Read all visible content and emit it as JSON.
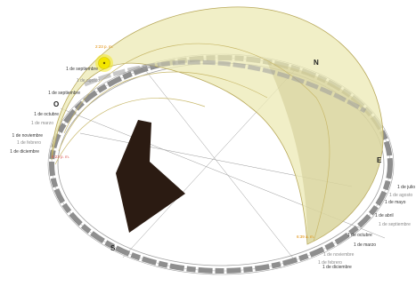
{
  "cardinals": {
    "north": "N",
    "south": "S",
    "east": "E",
    "west": "O"
  },
  "colors": {
    "dome_fill": "#ece9b4",
    "dome_stroke": "#b8a85a",
    "sun": "#f3e600",
    "shadow": "#2b1b12",
    "ring_dark": "#8e8e8e",
    "ring_light": "#d6d6d6",
    "time_orange": "#e08a00",
    "time_red": "#d9534f"
  },
  "time_labels": {
    "sun_time": "2:23 p. m.",
    "west_time": "6:23 p. m.",
    "east_time": "6:39 a. m."
  },
  "left_labels": {
    "l1": "1 de septiembre",
    "l2": "1 de agosto",
    "l3": "1 de septiembre",
    "l4": "1 de octubre",
    "l5": "1 de marzo",
    "l6": "1 de noviembre",
    "l7": "1 de febrero",
    "l8": "1 de diciembre"
  },
  "right_labels": {
    "r1": "1 de julio",
    "r2": "1 de agosto",
    "r3": "1 de mayo",
    "r4": "1 de abril",
    "r5": "1 de septiembre",
    "r6": "1 de octubre",
    "r7": "1 de marzo",
    "r8": "1 de noviembre",
    "r9": "1 de febrero",
    "r10": "1 de diciembre"
  }
}
